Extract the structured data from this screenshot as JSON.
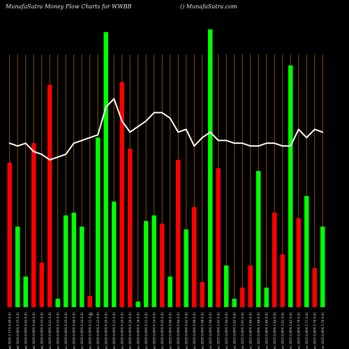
{
  "header": {
    "left": "MunafaSutra  Money Flow  Charts for WWBB",
    "right": "() MunafaSutra.com"
  },
  "chart_data": {
    "type": "bar",
    "grid": true,
    "ylim": [
      0,
      100
    ],
    "x_marker": "0",
    "categories": [
      "Fri 06 Feb 2026 7.71% 6.69 0.01",
      "Thu 05 Feb 2026 0.00% 6.55 0.01",
      "Wed 04 Feb 2026 0.00% 6.62 0.01",
      "Tue 03 Feb 2026 0.00% 6.44 0.01",
      "Mon 02 Feb 2026 0.00% 6.43 0.01",
      "Fri 30 Jan 2026 0.00% 6.41 0.01",
      "Thu 29 Jan 2026 0.00% 6.33 0.01",
      "Wed 28 Jan 2026 0.00% 6.35 0.01",
      "Tue 27 Jan 2026 0.00% 6.40 0.01",
      "Mon 26 Jan 2026 0.00% 6.44 0.01",
      "Fri 23 Jan 2026 0.00% 6.21 0.01",
      "Thu 22 Jan 2026 0.00% 6.22 0.01",
      "Wed 21 Jan 2026 0.00% 6.26 0.01",
      "Tue 20 Jan 2026 0.00% 6.21 0.01",
      "Fri 16 Jan 2026 0.00% 6.20 0.01",
      "Thu 15 Jan 2026 0.00% 6.26 0.01",
      "Wed 14 Jan 2026 0.00% 6.18 0.01",
      "Tue 13 Jan 2026 0.00% 6.21 0.01",
      "Mon 12 Jan 2026 0.00% 6.14 0.01",
      "Fri 09 Jan 2026 0.00% 6.05 0.01",
      "Thu 08 Jan 2026 0.00% 6.06 0.01",
      "Wed 07 Jan 2026 0.00% 6.04 0.01",
      "Tue 06 Jan 2026 0.00% 6.02 0.01",
      "Mon 05 Jan 2026 0.00% 6.00 0.01",
      "Fri 02 Jan 2026 0.00% 5.98 0.01",
      "Wed 31 Dec 2025 0.00% 5.98 0.01",
      "Tue 30 Dec 2025 0.00% 5.97 0.01",
      "Mon 29 Dec 2025 0.00% 5.94 0.01",
      "Fri 26 Dec 2025 0.00% 5.92 0.01",
      "Wed 24 Dec 2025 0.00% 5.91 0.01",
      "Tue 23 Dec 2025 0.00% 5.89 0.01",
      "Mon 22 Dec 2025 0.00% 5.88 0.01",
      "Fri 19 Dec 2025 0.00% 5.86 0.01",
      "Thu 18 Dec 2025 0.00% 5.84 0.01",
      "Wed 17 Dec 2025 0.00% 5.81 0.01",
      "Tue 16 Dec 2025 0.00% 5.82 0.01",
      "Mon 15 Dec 2025 0.00% 5.79 0.01",
      "Fri 12 Dec 2025 0.00% 5.77 0.01",
      "Thu 11 Dec 2025 0.00% 5.76 0.01",
      "Wed 10 Dec 2025 0.00% 5.76 0.01"
    ],
    "series": [
      {
        "kind": "bars",
        "color_up": "#00ff00",
        "color_down": "#ff0000",
        "values": [
          52,
          29,
          11,
          59,
          16,
          80,
          3,
          33,
          34,
          29,
          4,
          61,
          99,
          38,
          81,
          57,
          2,
          31,
          33,
          30,
          11,
          53,
          28,
          36,
          9,
          100,
          50,
          15,
          3,
          7,
          15,
          49,
          7,
          34,
          19,
          87,
          32,
          40,
          14,
          29
        ],
        "directions": [
          "down",
          "up",
          "up",
          "down",
          "down",
          "down",
          "up",
          "up",
          "up",
          "up",
          "down",
          "up",
          "up",
          "up",
          "down",
          "down",
          "up",
          "up",
          "up",
          "down",
          "up",
          "down",
          "up",
          "down",
          "down",
          "up",
          "down",
          "up",
          "up",
          "down",
          "down",
          "up",
          "up",
          "down",
          "down",
          "up",
          "down",
          "up",
          "down",
          "up"
        ]
      },
      {
        "kind": "line",
        "color": "#ffffff",
        "values": [
          59,
          58,
          59,
          56,
          55,
          53,
          54,
          55,
          59,
          60,
          61,
          62,
          72,
          75,
          67,
          63,
          65,
          67,
          70,
          70,
          68,
          63,
          64,
          58,
          61,
          63,
          60,
          60,
          59,
          59,
          58,
          58,
          59,
          59,
          58,
          58,
          64,
          61,
          64,
          63
        ]
      }
    ]
  }
}
